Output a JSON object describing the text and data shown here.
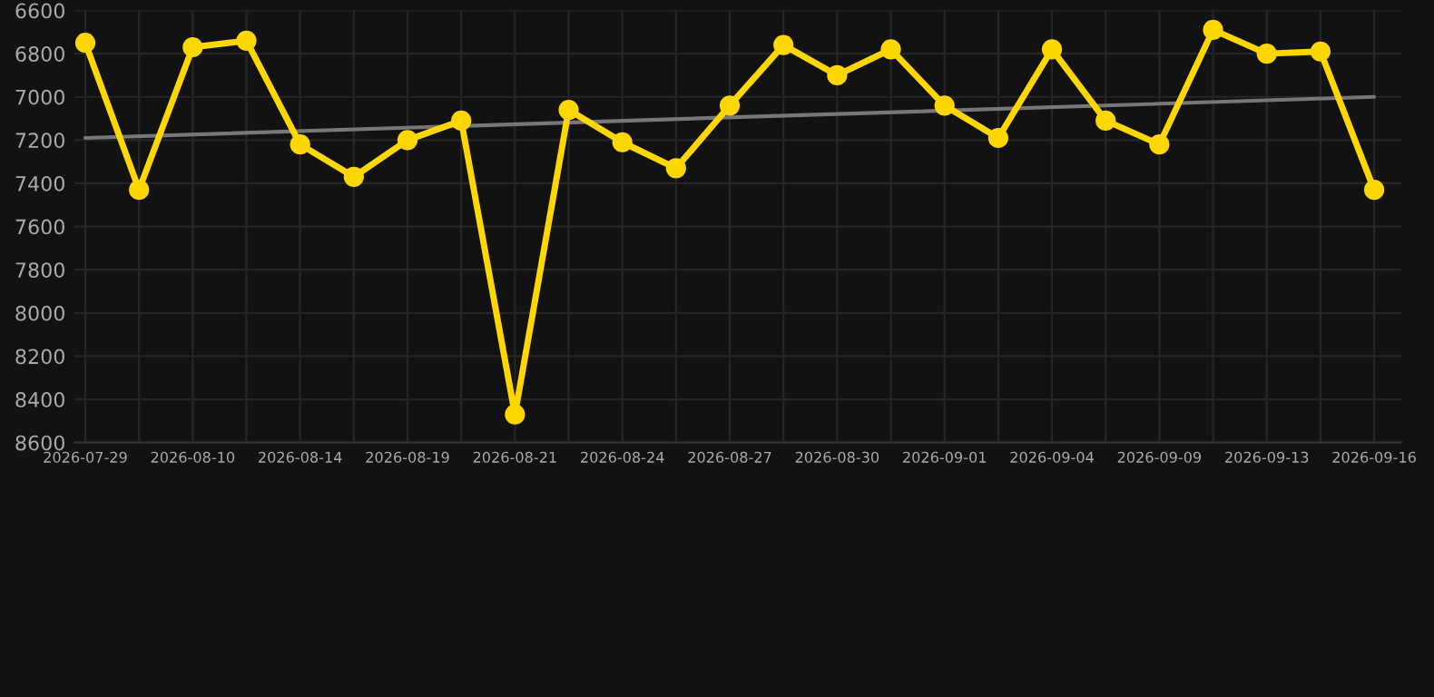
{
  "chart_data": {
    "type": "line",
    "categories": [
      "2026-07-29",
      null,
      "2026-08-10",
      null,
      "2026-08-14",
      null,
      "2026-08-19",
      null,
      "2026-08-21",
      null,
      "2026-08-24",
      null,
      "2026-08-27",
      null,
      "2026-08-30",
      null,
      "2026-09-01",
      null,
      "2026-09-04",
      null,
      "2026-09-09",
      null,
      "2026-09-13",
      null,
      "2026-09-16"
    ],
    "series": [
      {
        "color": "#ffd700",
        "marker": "circle",
        "values": [
          6750,
          7430,
          6770,
          6740,
          7220,
          7370,
          7200,
          7110,
          8470,
          7060,
          7210,
          7330,
          7040,
          6760,
          6900,
          6780,
          7040,
          7190,
          6780,
          7110,
          7220,
          6690,
          6800,
          6790,
          7430
        ]
      },
      {
        "color": "#777777",
        "marker": "none",
        "values": [
          7190,
          null,
          null,
          null,
          null,
          null,
          null,
          null,
          null,
          null,
          null,
          null,
          null,
          null,
          null,
          null,
          null,
          null,
          null,
          null,
          null,
          null,
          null,
          null,
          7000
        ]
      }
    ],
    "ylim": [
      8600,
      6600
    ],
    "yticks": [
      6600,
      6800,
      7000,
      7200,
      7400,
      7600,
      7800,
      8000,
      8200,
      8400,
      8600
    ],
    "grid": true
  }
}
